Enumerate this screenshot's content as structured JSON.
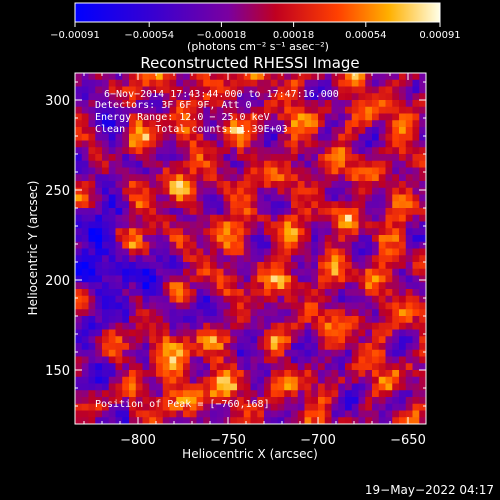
{
  "chart_data": {
    "type": "heatmap",
    "title": "Reconstructed RHESSI Image",
    "xlabel": "Heliocentric X (arcsec)",
    "ylabel": "Heliocentric Y (arcsec)",
    "xlim": [
      -835,
      -640
    ],
    "ylim": [
      120,
      315
    ],
    "x_ticks": [
      -800,
      -750,
      -700,
      -650
    ],
    "y_ticks": [
      150,
      200,
      250,
      300
    ],
    "x_tick_labels": [
      "−800",
      "−750",
      "−700",
      "−650"
    ],
    "y_tick_labels": [
      "150",
      "200",
      "250",
      "300"
    ],
    "colorbar": {
      "ticks": [
        -0.00091,
        -0.00054,
        -0.00018,
        0.00018,
        0.00054,
        0.00091
      ],
      "tick_labels": [
        "−0.00091",
        "−0.00054",
        "−0.00018",
        "0.00018",
        "0.00054",
        "0.00091"
      ],
      "unit": "(photons cm⁻² s⁻¹ asec⁻²)",
      "range": [
        -0.00091,
        0.00091
      ]
    },
    "annotations": {
      "time_range": "6−Nov−2014 17:43:44.000 to 17:47:16.000",
      "detectors": "Detectors: 3F 6F 9F, Att 0",
      "energy": "Energy Range: 12.0 − 25.0 keV",
      "clean": "Clean     Total counts: 1.39E+03",
      "peak": "Position of Peak = [−760,168]"
    },
    "peak_position": [
      -760,
      168
    ],
    "grid": false
  },
  "footer": {
    "timestamp": "19−May−2022 04:17"
  }
}
